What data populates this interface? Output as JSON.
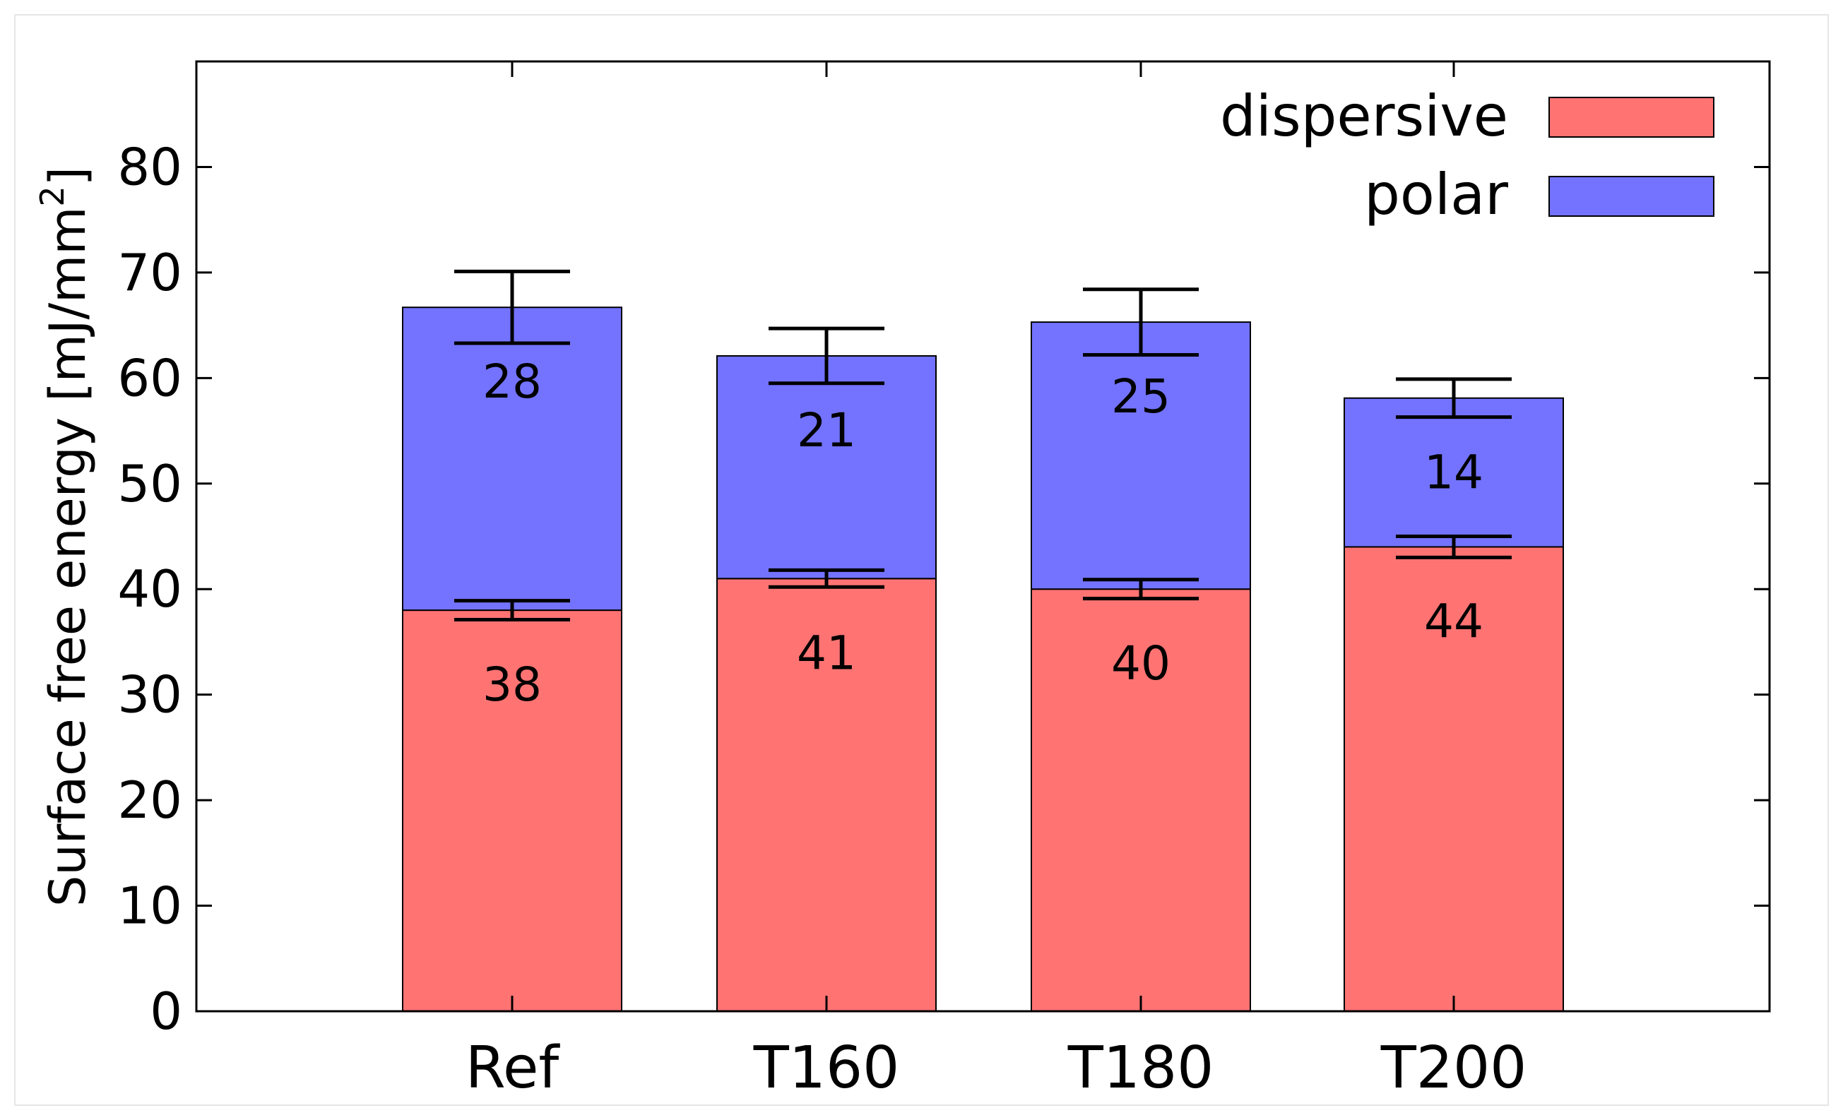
{
  "chart_data": {
    "type": "bar",
    "stacked": true,
    "title": "",
    "xlabel": "",
    "ylabel": "Surface free energy [mJ/mm",
    "ylabel_superscript": "2",
    "ylabel_close": "]",
    "ylim": [
      0,
      90
    ],
    "yticks": [
      "0",
      "10",
      "20",
      "30",
      "40",
      "50",
      "60",
      "70",
      "80"
    ],
    "categories": [
      "Ref",
      "T160",
      "T180",
      "T200"
    ],
    "series": [
      {
        "name": "dispersive",
        "color": "#ff7373",
        "values": [
          38,
          41,
          40,
          44
        ],
        "labels": [
          "38",
          "41",
          "40",
          "44"
        ],
        "errors": [
          0.9,
          0.8,
          0.9,
          1.0
        ]
      },
      {
        "name": "polar",
        "color": "#7373ff",
        "values": [
          28,
          21,
          25,
          14
        ],
        "labels": [
          "28",
          "21",
          "25",
          "14"
        ],
        "errors": [
          3.4,
          2.6,
          3.1,
          1.8
        ]
      }
    ],
    "bar_tops": [
      66.7,
      62.1,
      65.3,
      58.1
    ],
    "legend": {
      "position": "top-right",
      "entries": [
        "dispersive",
        "polar"
      ]
    },
    "grid": false
  }
}
